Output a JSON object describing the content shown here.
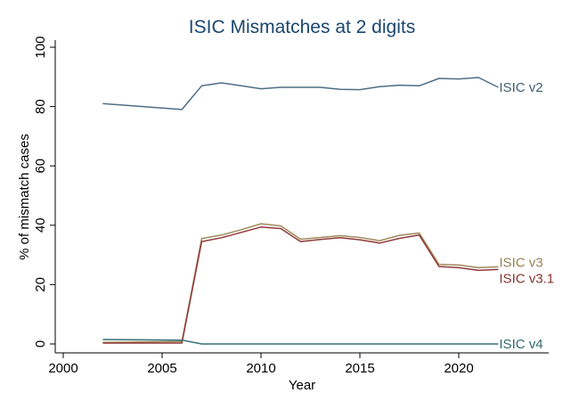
{
  "chart_data": {
    "type": "line",
    "title": "ISIC Mismatches at 2 digits",
    "xlabel": "Year",
    "ylabel": "% of mismatch cases",
    "xlim": [
      2000,
      2024
    ],
    "ylim": [
      0,
      100
    ],
    "xticks": [
      2000,
      2005,
      2010,
      2015,
      2020
    ],
    "yticks": [
      0,
      20,
      40,
      60,
      80,
      100
    ],
    "grid": false,
    "legend": "labels at line ends",
    "x": [
      2002,
      2006,
      2007,
      2008,
      2009,
      2010,
      2011,
      2012,
      2013,
      2014,
      2015,
      2016,
      2017,
      2018,
      2019,
      2020,
      2021,
      2022
    ],
    "series": [
      {
        "name": "ISIC v2",
        "color": "#4d6e85",
        "label_color": "#3f5f74",
        "values": [
          81,
          79,
          87,
          88,
          87,
          86,
          86.5,
          86.5,
          86.5,
          85.8,
          85.7,
          86.7,
          87.2,
          87,
          89.5,
          89.3,
          89.8,
          86.5
        ]
      },
      {
        "name": "ISIC v3",
        "color": "#a08a5a",
        "label_color": "#968254",
        "values": [
          0.5,
          0.8,
          35.5,
          36.7,
          38.5,
          40.5,
          39.8,
          35.3,
          35.9,
          36.5,
          35.9,
          34.8,
          36.6,
          37.4,
          26.8,
          26.6,
          25.7,
          26
        ]
      },
      {
        "name": "ISIC v3.1",
        "color": "#8f3a3a",
        "label_color": "#8a3232",
        "values": [
          0.3,
          0.3,
          34.5,
          35.8,
          37.6,
          39.4,
          38.9,
          34.5,
          35.2,
          35.8,
          35.1,
          34,
          35.6,
          36.7,
          26.1,
          25.7,
          24.8,
          25.1
        ]
      },
      {
        "name": "ISIC v4",
        "color": "#356e73",
        "label_color": "#2f6a6e",
        "values": [
          1.5,
          1.3,
          0,
          0,
          0,
          0,
          0,
          0,
          0,
          0,
          0,
          0,
          0,
          0,
          0,
          0,
          0,
          0
        ]
      }
    ]
  }
}
